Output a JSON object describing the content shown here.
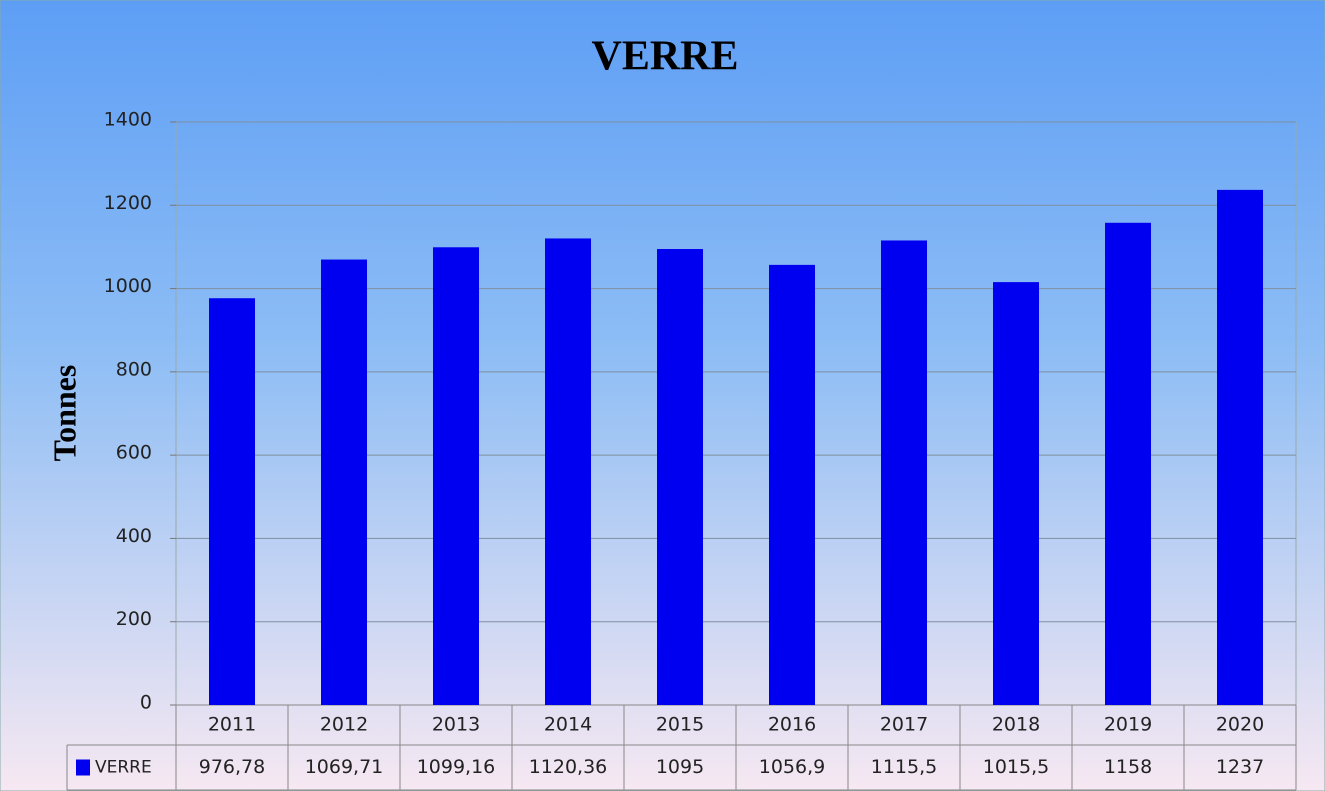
{
  "chart_data": {
    "type": "bar",
    "title": "VERRE",
    "y_label": "Tonnes",
    "categories": [
      "2011",
      "2012",
      "2013",
      "2014",
      "2015",
      "2016",
      "2017",
      "2018",
      "2019",
      "2020"
    ],
    "series": [
      {
        "name": "VERRE",
        "color": "#0000f0",
        "values": [
          976.78,
          1069.71,
          1099.16,
          1120.36,
          1095,
          1056.9,
          1115.5,
          1015.5,
          1158,
          1237
        ],
        "value_labels": [
          "976,78",
          "1069,71",
          "1099,16",
          "1120,36",
          "1095",
          "1056,9",
          "1115,5",
          "1015,5",
          "1158",
          "1237"
        ]
      }
    ],
    "ylim": [
      0,
      1400
    ],
    "yticks": [
      0,
      200,
      400,
      600,
      800,
      1000,
      1200,
      1400
    ],
    "grid": true
  }
}
